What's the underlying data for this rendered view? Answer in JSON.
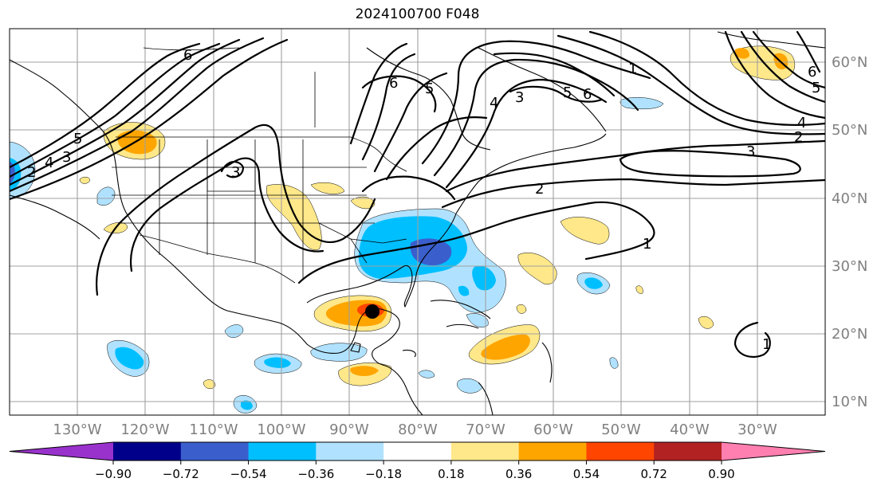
{
  "title": "2024100700 F048",
  "latitude_labels": [
    "60°N",
    "50°N",
    "40°N",
    "30°N",
    "20°N",
    "10°N"
  ],
  "longitude_labels": [
    "130°W",
    "120°W",
    "110°W",
    "100°W",
    "90°W",
    "80°W",
    "70°W",
    "60°W",
    "50°W",
    "40°W",
    "30°W"
  ],
  "colorbar": {
    "colors": [
      "#9932cc",
      "#00008b",
      "#3a5fcd",
      "#00bfff",
      "#b0e2ff",
      "#ffffff",
      "#ffe88a",
      "#ffa500",
      "#ff4500",
      "#b22222",
      "#ff7fb0"
    ],
    "tick_labels": [
      "−0.90",
      "−0.72",
      "−0.54",
      "−0.36",
      "−0.18",
      "0.18",
      "0.36",
      "0.54",
      "0.72",
      "0.90"
    ]
  },
  "contour_labels": [
    {
      "id": "c6-nw",
      "text": "6"
    },
    {
      "id": "c5-pac",
      "text": "5"
    },
    {
      "id": "c3-pac",
      "text": "3"
    },
    {
      "id": "c4-pac",
      "text": "4"
    },
    {
      "id": "c2-pac",
      "text": "2"
    },
    {
      "id": "c3-us",
      "text": "3"
    },
    {
      "id": "c6-can",
      "text": "6"
    },
    {
      "id": "c5-can",
      "text": "5"
    },
    {
      "id": "c4-lab",
      "text": "4"
    },
    {
      "id": "c3-lab",
      "text": "3"
    },
    {
      "id": "c5-lab",
      "text": "5"
    },
    {
      "id": "c6-lab",
      "text": "6"
    },
    {
      "id": "c3-atl",
      "text": "3"
    },
    {
      "id": "c1-atl",
      "text": "1"
    },
    {
      "id": "c2-atl",
      "text": "2"
    },
    {
      "id": "c1-nw",
      "text": "1"
    },
    {
      "id": "c4-ice",
      "text": "4"
    },
    {
      "id": "c2-ice",
      "text": "2"
    },
    {
      "id": "c6-ice",
      "text": "6"
    },
    {
      "id": "c5-ice",
      "text": "5"
    },
    {
      "id": "c1-small",
      "text": "1"
    }
  ],
  "storm_marker": {
    "label": "hurricane-center",
    "color": "#000000"
  }
}
